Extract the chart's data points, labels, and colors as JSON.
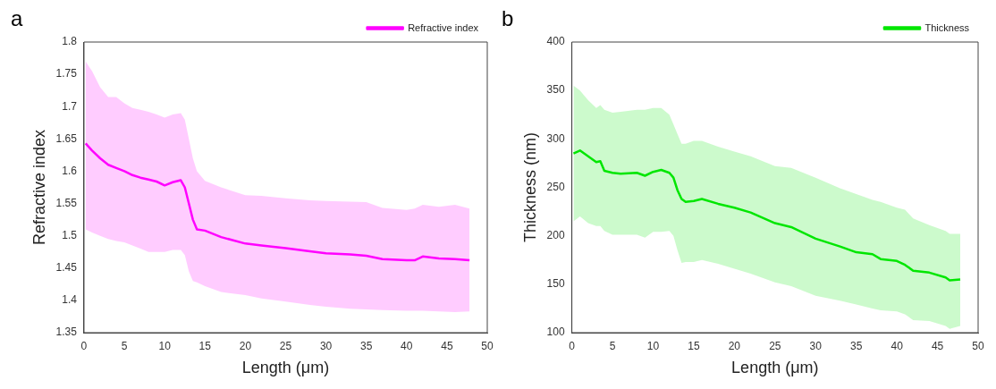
{
  "chart_data": [
    {
      "type": "line",
      "title": "a",
      "xlabel": "Length (μm)",
      "ylabel": "Refractive index",
      "xlim": [
        0,
        50
      ],
      "xticks": [
        0,
        5,
        10,
        15,
        20,
        25,
        30,
        35,
        40,
        45,
        50
      ],
      "ylim": [
        1.35,
        1.8
      ],
      "yticks": [
        1.35,
        1.4,
        1.45,
        1.5,
        1.55,
        1.6,
        1.65,
        1.7,
        1.75,
        1.8
      ],
      "grid": false,
      "legend": "top right",
      "marker": "none",
      "line_style": "solid",
      "x": [
        0.2,
        1,
        2,
        3,
        4,
        5,
        6,
        7,
        8,
        9,
        10,
        11,
        12,
        12.5,
        13,
        13.5,
        14,
        15,
        17,
        20,
        22,
        25,
        28,
        30,
        33,
        35,
        37,
        40,
        41,
        42,
        44,
        46,
        47.8
      ],
      "series": [
        {
          "name": "Refractive index",
          "color": "#ff00ff",
          "values": [
            1.643,
            1.632,
            1.62,
            1.61,
            1.605,
            1.6,
            1.594,
            1.59,
            1.587,
            1.584,
            1.578,
            1.583,
            1.586,
            1.575,
            1.55,
            1.525,
            1.51,
            1.508,
            1.498,
            1.488,
            1.485,
            1.481,
            1.476,
            1.473,
            1.471,
            1.469,
            1.464,
            1.462,
            1.462,
            1.468,
            1.465,
            1.464,
            1.462
          ],
          "upper": [
            1.77,
            1.755,
            1.73,
            1.715,
            1.715,
            1.705,
            1.698,
            1.695,
            1.692,
            1.688,
            1.683,
            1.688,
            1.69,
            1.68,
            1.65,
            1.62,
            1.6,
            1.585,
            1.575,
            1.563,
            1.562,
            1.558,
            1.555,
            1.554,
            1.553,
            1.552,
            1.543,
            1.54,
            1.542,
            1.548,
            1.545,
            1.548,
            1.542
          ],
          "lower": [
            1.51,
            1.505,
            1.5,
            1.495,
            1.492,
            1.49,
            1.485,
            1.48,
            1.475,
            1.475,
            1.475,
            1.478,
            1.478,
            1.47,
            1.445,
            1.43,
            1.428,
            1.422,
            1.413,
            1.408,
            1.403,
            1.398,
            1.393,
            1.39,
            1.387,
            1.386,
            1.385,
            1.384,
            1.384,
            1.384,
            1.383,
            1.382,
            1.383
          ]
        }
      ]
    },
    {
      "type": "line",
      "title": "b",
      "xlabel": "Length (μm)",
      "ylabel": "Thickness (nm)",
      "xlim": [
        0,
        50
      ],
      "xticks": [
        0,
        5,
        10,
        15,
        20,
        25,
        30,
        35,
        40,
        45,
        50
      ],
      "ylim": [
        100,
        400
      ],
      "yticks": [
        100,
        150,
        200,
        250,
        300,
        350,
        400
      ],
      "grid": false,
      "legend": "top right",
      "marker": "none",
      "line_style": "solid",
      "x": [
        0.2,
        1,
        2,
        3,
        3.5,
        4,
        5,
        6,
        8,
        9,
        10,
        11,
        12,
        12.5,
        13,
        13.5,
        14,
        15,
        16,
        18,
        20,
        22,
        25,
        27,
        30,
        33,
        35,
        37,
        38,
        40,
        41,
        42,
        44,
        46,
        46.5,
        47.8
      ],
      "series": [
        {
          "name": "Thickness",
          "color": "#00e600",
          "values": [
            285,
            288,
            282,
            276,
            277,
            267,
            265,
            264,
            265,
            262,
            266,
            268,
            265,
            260,
            247,
            238,
            235,
            236,
            238,
            233,
            229,
            224,
            213,
            209,
            197,
            189,
            183,
            181,
            176,
            174,
            170,
            164,
            162,
            157,
            154,
            155
          ],
          "upper": [
            355,
            350,
            340,
            332,
            335,
            330,
            327,
            328,
            330,
            330,
            332,
            332,
            325,
            315,
            305,
            295,
            295,
            298,
            298,
            292,
            287,
            282,
            272,
            270,
            260,
            249,
            243,
            237,
            235,
            229,
            227,
            218,
            211,
            205,
            202,
            202
          ],
          "lower": [
            215,
            220,
            213,
            210,
            210,
            205,
            201,
            201,
            201,
            198,
            204,
            204,
            205,
            200,
            185,
            172,
            173,
            173,
            175,
            171,
            166,
            161,
            152,
            148,
            138,
            133,
            129,
            125,
            123,
            122,
            119,
            113,
            112,
            107,
            104,
            107
          ]
        }
      ]
    }
  ]
}
